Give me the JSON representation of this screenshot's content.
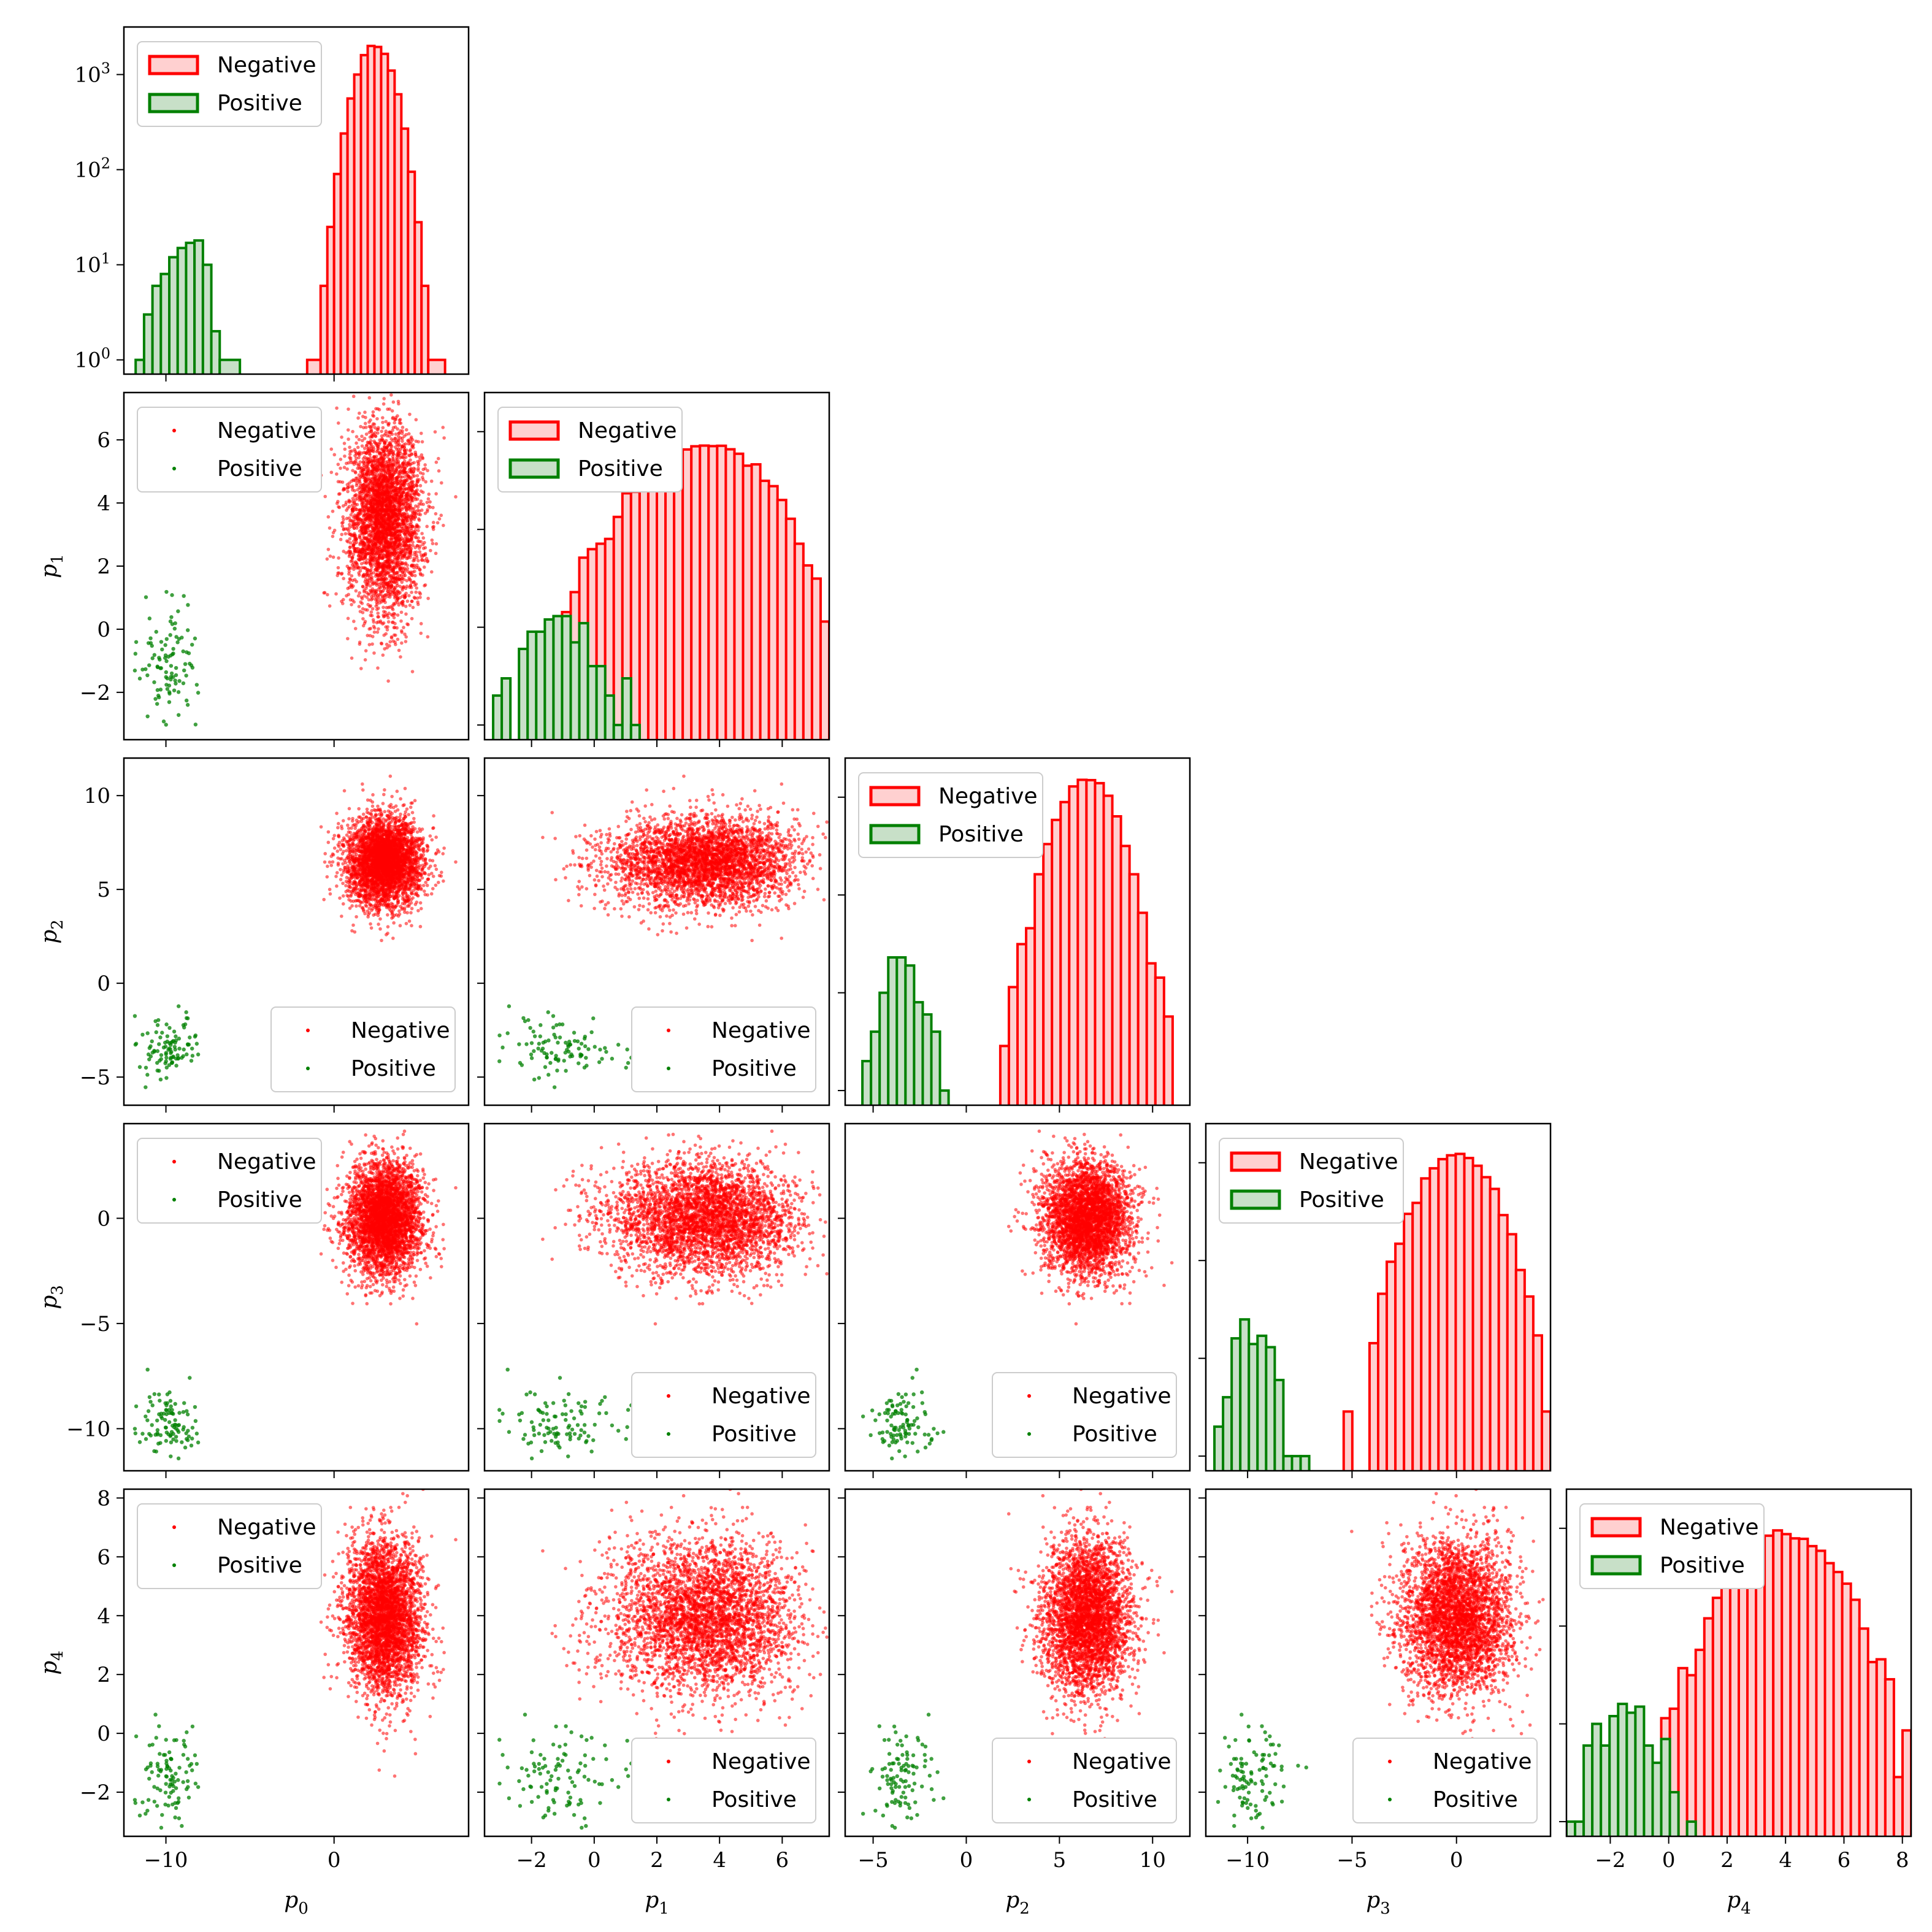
{
  "figure": {
    "type": "corner-plot",
    "parameters": [
      "p_0",
      "p_1",
      "p_2",
      "p_3",
      "p_4"
    ]
  },
  "colors": {
    "negative": "#ff0000",
    "positive": "#008000",
    "negative_fill": "#ffd0d0",
    "positive_fill": "#c8e0c8"
  },
  "legend": {
    "negative_label": "Negative",
    "positive_label": "Positive"
  },
  "axis_labels": [
    "p0",
    "p1",
    "p2",
    "p3",
    "p4"
  ],
  "chart_data": {
    "type": "scatter",
    "params": [
      {
        "name": "p0",
        "range": [
          -12.5,
          8
        ],
        "ticks": [
          -10,
          0
        ],
        "neg": {
          "mean": 3,
          "sd": 1.1
        },
        "pos": {
          "mean": -10,
          "sd": 0.9
        }
      },
      {
        "name": "p1",
        "range": [
          -3.5,
          7.5
        ],
        "ticks": [
          -2,
          0,
          2,
          4,
          6
        ],
        "neg": {
          "mean": 3.5,
          "sd": 1.5
        },
        "pos": {
          "mean": -1,
          "sd": 0.9
        }
      },
      {
        "name": "p2",
        "range": [
          -6.5,
          12
        ],
        "ticks": [
          -5,
          0,
          5,
          10
        ],
        "neg": {
          "mean": 6.5,
          "sd": 1.2
        },
        "pos": {
          "mean": -3.3,
          "sd": 0.8
        }
      },
      {
        "name": "p3",
        "range": [
          -12,
          4.5
        ],
        "ticks": [
          -10,
          -5,
          0
        ],
        "neg": {
          "mean": 0,
          "sd": 1.3
        },
        "pos": {
          "mean": -9.8,
          "sd": 0.8
        }
      },
      {
        "name": "p4",
        "range": [
          -3.5,
          8.3
        ],
        "ticks": [
          -2,
          0,
          2,
          4,
          6,
          8
        ],
        "neg": {
          "mean": 4,
          "sd": 1.3
        },
        "pos": {
          "mean": -1.5,
          "sd": 0.9
        }
      }
    ],
    "counts": {
      "negative": 10000,
      "positive": 100
    },
    "diagonal_hist": {
      "scale": "log",
      "p0": {
        "yticks": [
          "10^0",
          "10^1",
          "10^2",
          "10^3"
        ],
        "negative_bins": [
          {
            "x0": -1.6,
            "x1": -0.8,
            "count": 1
          },
          {
            "x0": -0.8,
            "x1": -0.4,
            "count": 6
          },
          {
            "x0": -0.4,
            "x1": 0.0,
            "count": 25
          },
          {
            "x0": 0.0,
            "x1": 0.4,
            "count": 90
          },
          {
            "x0": 0.4,
            "x1": 0.8,
            "count": 240
          },
          {
            "x0": 0.8,
            "x1": 1.2,
            "count": 560
          },
          {
            "x0": 1.2,
            "x1": 1.6,
            "count": 1000
          },
          {
            "x0": 1.6,
            "x1": 2.0,
            "count": 1600
          },
          {
            "x0": 2.0,
            "x1": 2.4,
            "count": 2000
          },
          {
            "x0": 2.4,
            "x1": 2.8,
            "count": 1950
          },
          {
            "x0": 2.8,
            "x1": 3.2,
            "count": 1650
          },
          {
            "x0": 3.2,
            "x1": 3.6,
            "count": 1100
          },
          {
            "x0": 3.6,
            "x1": 4.0,
            "count": 620
          },
          {
            "x0": 4.0,
            "x1": 4.4,
            "count": 270
          },
          {
            "x0": 4.4,
            "x1": 4.8,
            "count": 95
          },
          {
            "x0": 4.8,
            "x1": 5.2,
            "count": 28
          },
          {
            "x0": 5.2,
            "x1": 5.6,
            "count": 6
          },
          {
            "x0": 5.6,
            "x1": 6.6,
            "count": 1
          }
        ],
        "positive_bins": [
          {
            "x0": -11.8,
            "x1": -11.3,
            "count": 1
          },
          {
            "x0": -11.3,
            "x1": -10.8,
            "count": 3
          },
          {
            "x0": -10.8,
            "x1": -10.3,
            "count": 6
          },
          {
            "x0": -10.3,
            "x1": -9.8,
            "count": 8
          },
          {
            "x0": -9.8,
            "x1": -9.3,
            "count": 12
          },
          {
            "x0": -9.3,
            "x1": -8.8,
            "count": 15
          },
          {
            "x0": -8.8,
            "x1": -8.3,
            "count": 17
          },
          {
            "x0": -8.3,
            "x1": -7.8,
            "count": 18
          },
          {
            "x0": -7.8,
            "x1": -7.3,
            "count": 10
          },
          {
            "x0": -7.3,
            "x1": -6.8,
            "count": 2
          },
          {
            "x0": -6.8,
            "x1": -5.6,
            "count": 1
          }
        ]
      }
    }
  }
}
